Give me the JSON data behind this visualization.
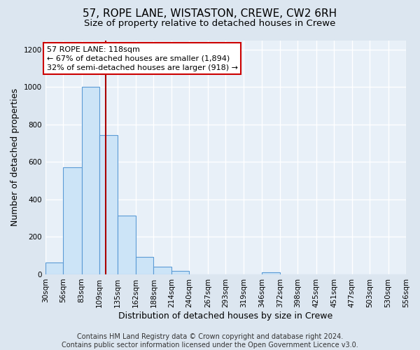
{
  "title": "57, ROPE LANE, WISTASTON, CREWE, CW2 6RH",
  "subtitle": "Size of property relative to detached houses in Crewe",
  "xlabel": "Distribution of detached houses by size in Crewe",
  "ylabel": "Number of detached properties",
  "bar_color": "#cce4f7",
  "bar_edge_color": "#5b9bd5",
  "background_color": "#dce6f0",
  "plot_bg_color": "#e8f0f8",
  "grid_color": "#ffffff",
  "bins": [
    30,
    56,
    83,
    109,
    135,
    162,
    188,
    214,
    240,
    267,
    293,
    319,
    346,
    372,
    398,
    425,
    451,
    477,
    503,
    530,
    556
  ],
  "bin_labels": [
    "30sqm",
    "56sqm",
    "83sqm",
    "109sqm",
    "135sqm",
    "162sqm",
    "188sqm",
    "214sqm",
    "240sqm",
    "267sqm",
    "293sqm",
    "319sqm",
    "346sqm",
    "372sqm",
    "398sqm",
    "425sqm",
    "451sqm",
    "477sqm",
    "503sqm",
    "530sqm",
    "556sqm"
  ],
  "heights": [
    65,
    570,
    1000,
    745,
    315,
    95,
    40,
    20,
    0,
    0,
    0,
    0,
    10,
    0,
    0,
    0,
    0,
    0,
    0,
    0
  ],
  "ylim": [
    0,
    1250
  ],
  "yticks": [
    0,
    200,
    400,
    600,
    800,
    1000,
    1200
  ],
  "property_line_x": 118,
  "property_line_color": "#aa0000",
  "annotation_line1": "57 ROPE LANE: 118sqm",
  "annotation_line2": "← 67% of detached houses are smaller (1,894)",
  "annotation_line3": "32% of semi-detached houses are larger (918) →",
  "footer_text": "Contains HM Land Registry data © Crown copyright and database right 2024.\nContains public sector information licensed under the Open Government Licence v3.0.",
  "title_fontsize": 11,
  "subtitle_fontsize": 9.5,
  "axis_label_fontsize": 9,
  "tick_fontsize": 7.5,
  "annotation_fontsize": 8,
  "footer_fontsize": 7
}
